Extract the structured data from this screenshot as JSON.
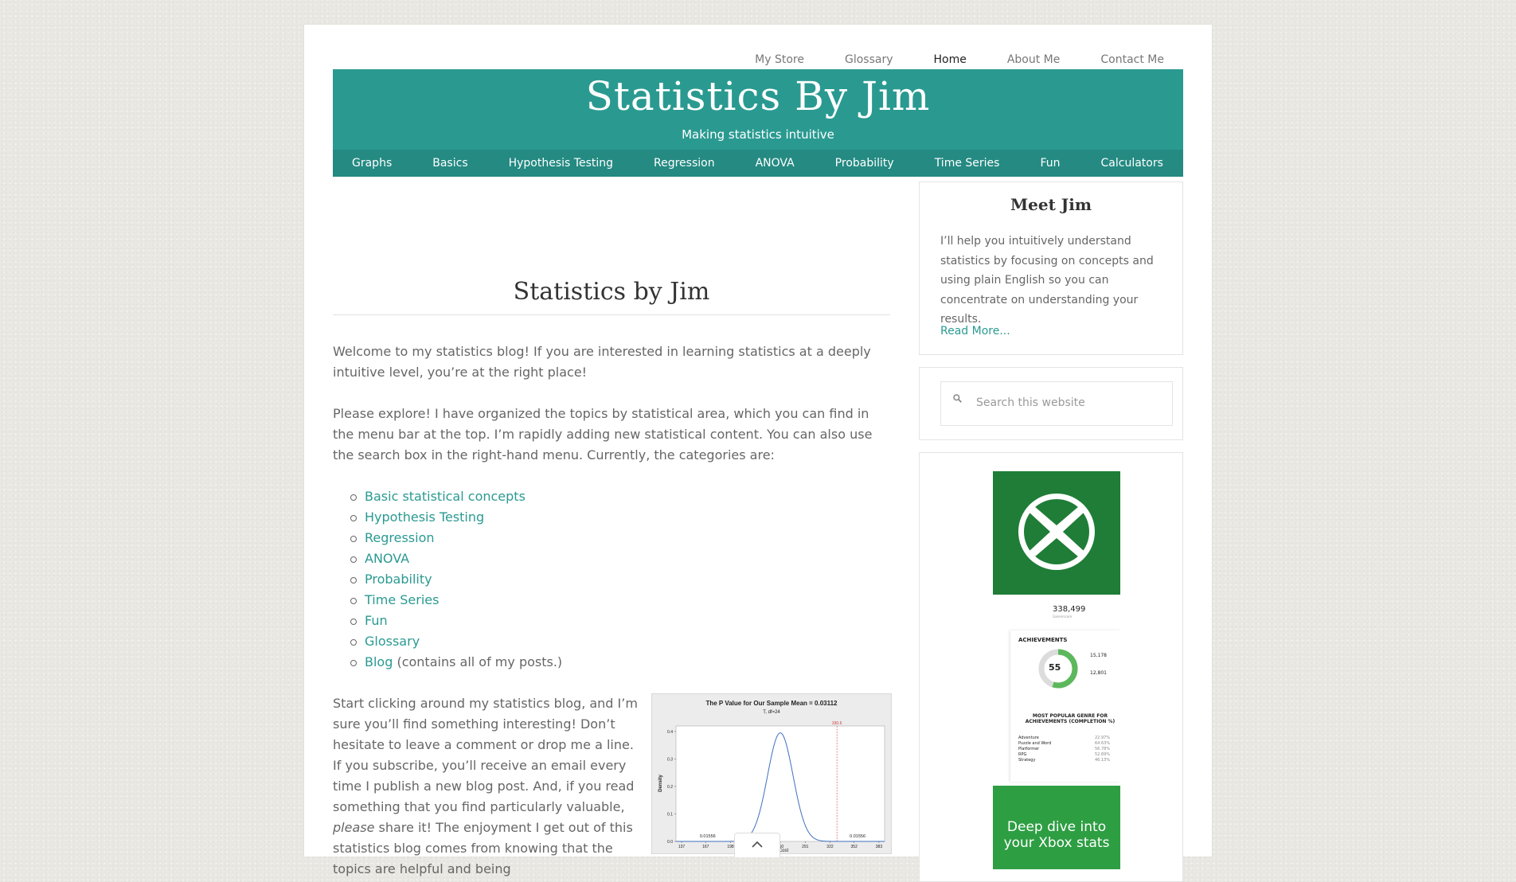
{
  "topnav": {
    "items": [
      {
        "label": "My Store"
      },
      {
        "label": "Glossary"
      },
      {
        "label": "Home"
      },
      {
        "label": "About Me"
      },
      {
        "label": "Contact Me"
      }
    ]
  },
  "header": {
    "title": "Statistics By Jim",
    "tagline": "Making statistics intuitive"
  },
  "mainnav": {
    "items": [
      {
        "label": "Graphs"
      },
      {
        "label": "Basics"
      },
      {
        "label": "Hypothesis Testing"
      },
      {
        "label": "Regression"
      },
      {
        "label": "ANOVA"
      },
      {
        "label": "Probability"
      },
      {
        "label": "Time Series"
      },
      {
        "label": "Fun"
      },
      {
        "label": "Calculators"
      }
    ]
  },
  "post": {
    "title": "Statistics by Jim",
    "p1": "Welcome to my statistics blog! If you are interested in learning statistics at a deeply intuitive level, you’re at the right place!",
    "p2": "Please explore! I have organized the topics by statistical area, which you can find in the menu bar at the top. I’m rapidly adding new statistical content. You can also use the search box in the right-hand menu. Currently, the categories are:",
    "categories": [
      {
        "label": "Basic statistical concepts"
      },
      {
        "label": "Hypothesis Testing"
      },
      {
        "label": "Regression"
      },
      {
        "label": "ANOVA"
      },
      {
        "label": "Probability"
      },
      {
        "label": "Time Series"
      },
      {
        "label": "Fun"
      },
      {
        "label": "Glossary"
      },
      {
        "label": "Blog",
        "suffix": " (contains all of my posts.)"
      }
    ],
    "p3_a": "Start clicking around my statistics blog, and I’m sure you’ll find something interesting! Don’t hesitate to leave a comment or drop me a line. If you subscribe, you’ll receive an email every time I publish a new blog post. And, if you read something that you find particularly valuable, ",
    "p3_em": "please",
    "p3_b": " share it! The enjoyment I get out of this statistics blog comes from knowing that the topics are helpful and being"
  },
  "chart_data": {
    "type": "area",
    "title": "The P Value for Our Sample Mean = 0.03112",
    "subtitle": "T, df=24",
    "xlabel": "Cost",
    "ylabel": "Density",
    "x_ticks": [
      "137",
      "167",
      "198",
      "229",
      "260",
      "291",
      "322",
      "352",
      "383"
    ],
    "y_ticks": [
      "0.0",
      "0.1",
      "0.2",
      "0.3",
      "0.4"
    ],
    "ylim": [
      0,
      0.42
    ],
    "marker_label": "330.6",
    "marker_x": 330.6,
    "mean": 260,
    "tail_left_label": "0.01556",
    "tail_right_label": "0.01556",
    "colors": {
      "curve": "#3f6fbf",
      "tail": "#a0172a",
      "marker": "#d04040"
    }
  },
  "sidebar": {
    "meet_title": "Meet Jim",
    "meet_text": "I’ll help you intuitively understand statistics by focusing on concepts and using plain English so you can concentrate on understanding your results.",
    "read_more": "Read More...",
    "search_placeholder": "Search this website",
    "ad": {
      "count": "338,499",
      "count_caption": "Gamerscore",
      "achievements_title": "ACHIEVEMENTS",
      "ring_value": "55",
      "stat1": "15,178",
      "stat2": "12,801",
      "genre_title": "MOST POPULAR GENRE FOR ACHIEVEMENTS (COMPLETION %)",
      "genres": [
        "Adventure",
        "Puzzle and Word",
        "Platformer",
        "RPG",
        "Strategy"
      ],
      "genre_pcts": [
        "22.97%",
        "64.63%",
        "56.78%",
        "52.69%",
        "46.13%"
      ],
      "cta": "Deep dive into your Xbox stats"
    }
  },
  "colors": {
    "accent": "#2a9a91",
    "nav": "#248a82",
    "ad_green": "#2e9e43"
  }
}
